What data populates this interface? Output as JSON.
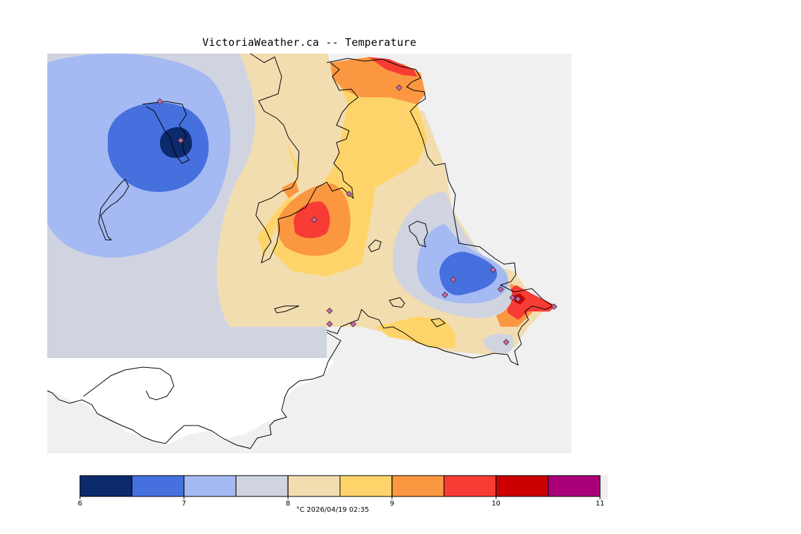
{
  "title": "VictoriaWeather.ca -- Temperature",
  "legend": {
    "colors": [
      "#0c2a6b",
      "#4670de",
      "#a5baf3",
      "#d0d4e0",
      "#f2ddb1",
      "#fed46a",
      "#fb9741",
      "#f73c35",
      "#cc0000",
      "#aa0077"
    ],
    "ticks": [
      {
        "value": 6,
        "label": "6"
      },
      {
        "value": 7,
        "label": "7"
      },
      {
        "value": 8,
        "label": "8"
      },
      {
        "value": 9,
        "label": "9"
      },
      {
        "value": 10,
        "label": "10"
      },
      {
        "value": 11,
        "label": "11"
      }
    ],
    "min": 6,
    "max": 11,
    "caption": "°C  2026/04/19 02:35"
  },
  "map": {
    "background_color": "#f0f0f0",
    "land_color": "#ffffff",
    "coastline_color": "#000000",
    "station_marker_color": "#cc66aa"
  }
}
